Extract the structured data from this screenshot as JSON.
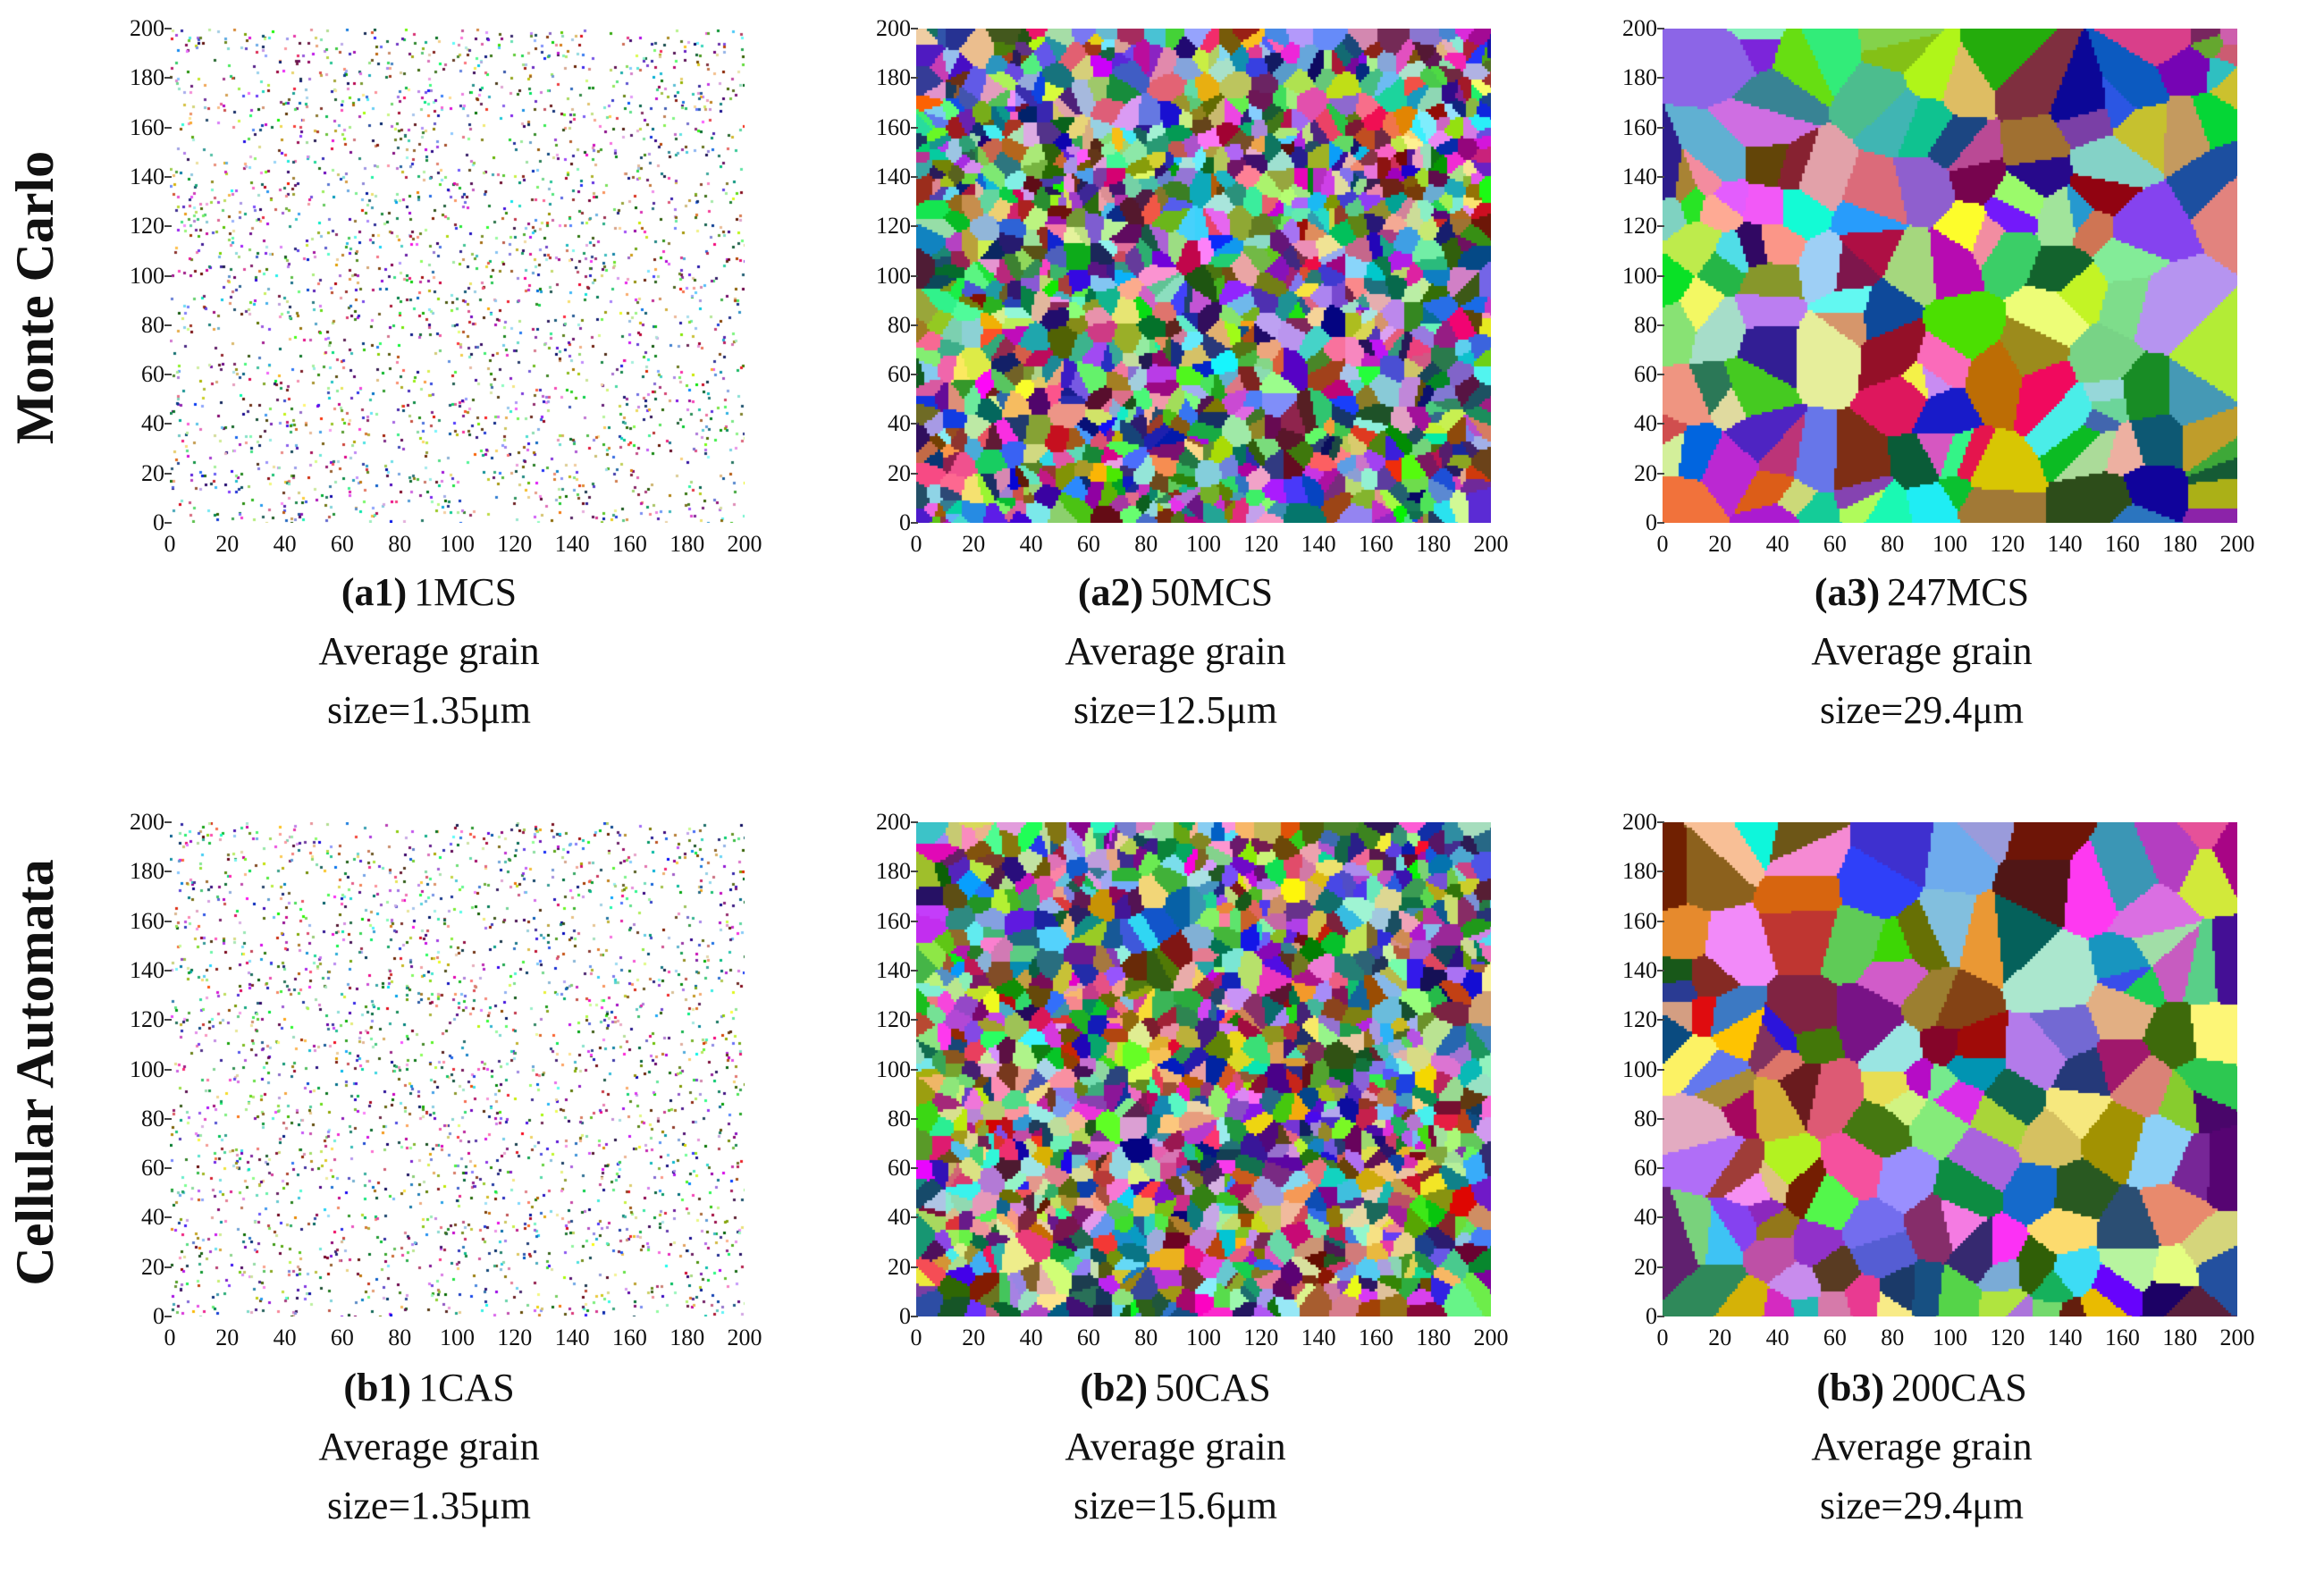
{
  "row_labels": [
    "Monte Carlo",
    "Cellular Automata"
  ],
  "axis_ticks": [
    "0",
    "20",
    "40",
    "60",
    "80",
    "100",
    "120",
    "140",
    "160",
    "180",
    "200"
  ],
  "panels": [
    {
      "tag": "(a1)",
      "step": "1MCS",
      "caption_line2": "Average grain",
      "caption_line3": "size=1.35μm"
    },
    {
      "tag": "(a2)",
      "step": "50MCS",
      "caption_line2": "Average grain",
      "caption_line3": "size=12.5μm"
    },
    {
      "tag": "(a3)",
      "step": "247MCS",
      "caption_line2": "Average grain",
      "caption_line3": "size=29.4μm"
    },
    {
      "tag": "(b1)",
      "step": "1CAS",
      "caption_line2": "Average grain",
      "caption_line3": "size=1.35μm"
    },
    {
      "tag": "(b2)",
      "step": "50CAS",
      "caption_line2": "Average grain",
      "caption_line3": "size=15.6μm"
    },
    {
      "tag": "(b3)",
      "step": "200CAS",
      "caption_line2": "Average grain",
      "caption_line3": "size=29.4μm"
    }
  ],
  "chart_data": [
    {
      "type": "heatmap",
      "panel": "a1",
      "xlim": [
        0,
        200
      ],
      "ylim": [
        0,
        200
      ],
      "grain_state": "sparse nuclei"
    },
    {
      "type": "heatmap",
      "panel": "a2",
      "xlim": [
        0,
        200
      ],
      "ylim": [
        0,
        200
      ],
      "grain_state": "fine grains"
    },
    {
      "type": "heatmap",
      "panel": "a3",
      "xlim": [
        0,
        200
      ],
      "ylim": [
        0,
        200
      ],
      "grain_state": "coarse grains"
    },
    {
      "type": "heatmap",
      "panel": "b1",
      "xlim": [
        0,
        200
      ],
      "ylim": [
        0,
        200
      ],
      "grain_state": "sparse nuclei"
    },
    {
      "type": "heatmap",
      "panel": "b2",
      "xlim": [
        0,
        200
      ],
      "ylim": [
        0,
        200
      ],
      "grain_state": "fine grains"
    },
    {
      "type": "heatmap",
      "panel": "b3",
      "xlim": [
        0,
        200
      ],
      "ylim": [
        0,
        200
      ],
      "grain_state": "coarse grains"
    }
  ]
}
